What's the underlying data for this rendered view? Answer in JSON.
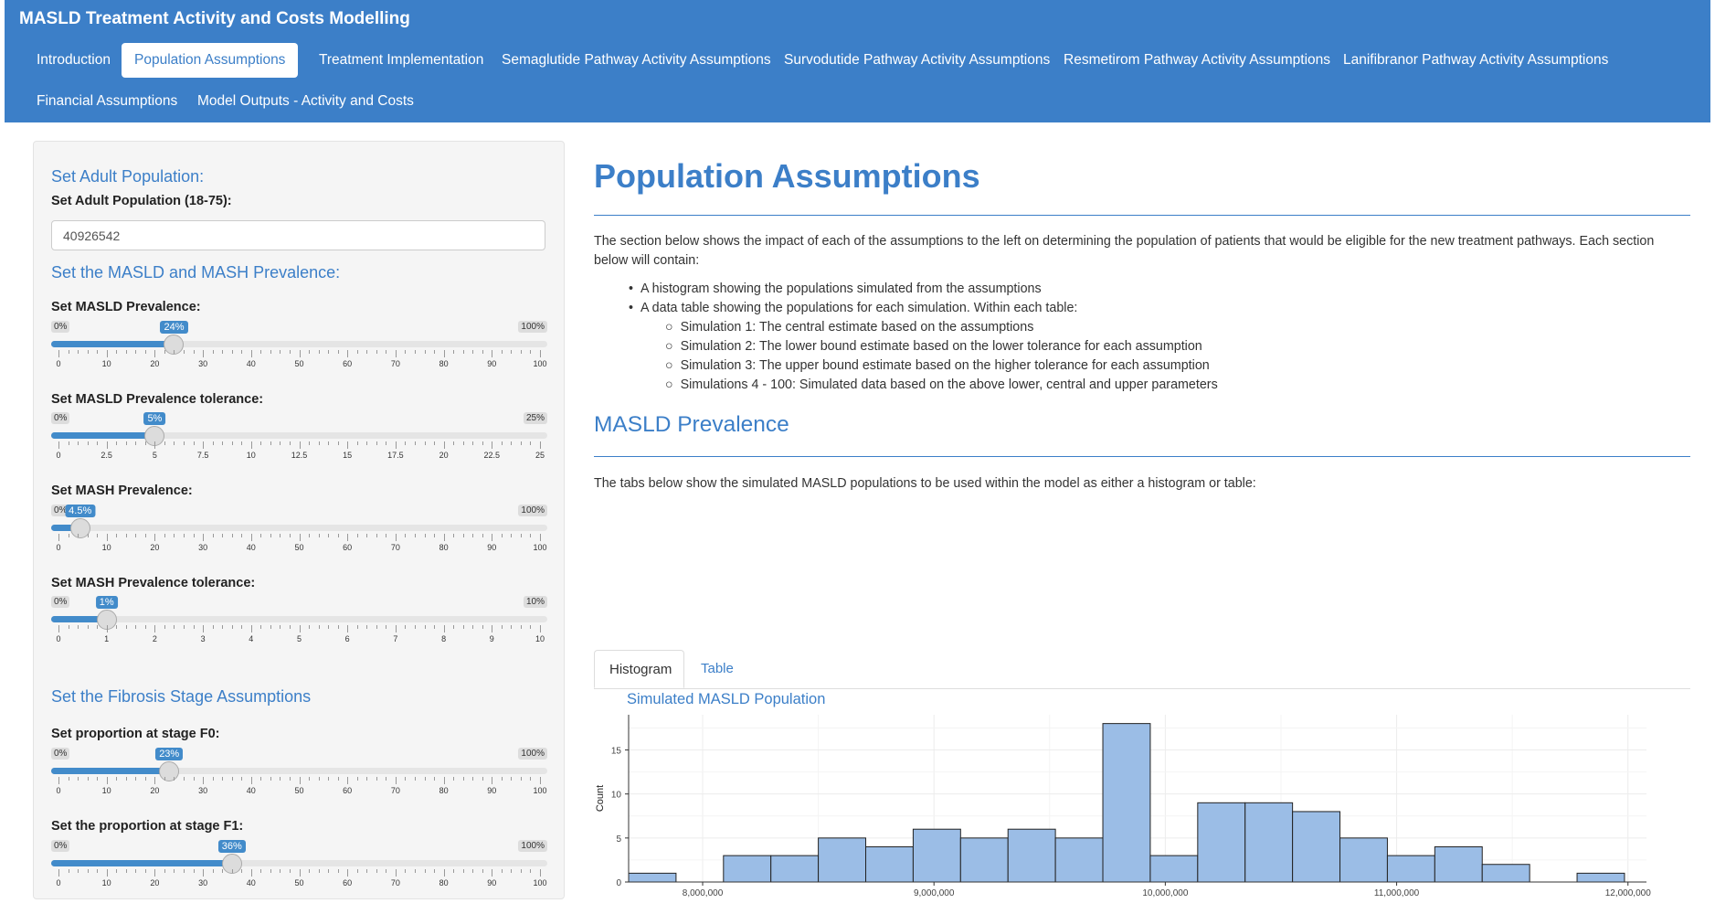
{
  "app_title": "MASLD Treatment Activity and Costs Modelling",
  "nav_tabs": [
    {
      "label": "Introduction"
    },
    {
      "label": "Population Assumptions"
    },
    {
      "label": "Treatment Implementation"
    },
    {
      "label": "Semaglutide Pathway Activity Assumptions"
    },
    {
      "label": "Survodutide Pathway Activity Assumptions"
    },
    {
      "label": "Resmetirom Pathway Activity Assumptions"
    },
    {
      "label": "Lanifibranor Pathway Activity Assumptions"
    },
    {
      "label": "Financial Assumptions"
    },
    {
      "label": "Model Outputs - Activity and Costs"
    }
  ],
  "active_tab": "Population Assumptions",
  "sidebar": {
    "adult_heading": "Set Adult Population:",
    "adult_label": "Set Adult Population (18-75):",
    "adult_value": "40926542",
    "prevalence_heading": "Set the MASLD and MASH Prevalence:",
    "fibrosis_heading": "Set the Fibrosis Stage Assumptions",
    "sliders": [
      {
        "label": "Set MASLD Prevalence:",
        "min": 0,
        "max": 100,
        "value": 24,
        "min_text": "0%",
        "max_text": "100%",
        "value_text": "24%",
        "ticks": [
          "0",
          "10",
          "20",
          "30",
          "40",
          "50",
          "60",
          "70",
          "80",
          "90",
          "100"
        ]
      },
      {
        "label": "Set MASLD Prevalence tolerance:",
        "min": 0,
        "max": 25,
        "value": 5,
        "min_text": "0%",
        "max_text": "25%",
        "value_text": "5%",
        "ticks": [
          "0",
          "2.5",
          "5",
          "7.5",
          "10",
          "12.5",
          "15",
          "17.5",
          "20",
          "22.5",
          "25"
        ]
      },
      {
        "label": "Set MASH Prevalence:",
        "min": 0,
        "max": 100,
        "value": 4.5,
        "min_text": "0%",
        "max_text": "100%",
        "value_text": "4.5%",
        "ticks": [
          "0",
          "10",
          "20",
          "30",
          "40",
          "50",
          "60",
          "70",
          "80",
          "90",
          "100"
        ]
      },
      {
        "label": "Set MASH Prevalence tolerance:",
        "min": 0,
        "max": 10,
        "value": 1,
        "min_text": "0%",
        "max_text": "10%",
        "value_text": "1%",
        "ticks": [
          "0",
          "1",
          "2",
          "3",
          "4",
          "5",
          "6",
          "7",
          "8",
          "9",
          "10"
        ]
      },
      {
        "label": "Set proportion at stage F0:",
        "min": 0,
        "max": 100,
        "value": 23,
        "min_text": "0%",
        "max_text": "100%",
        "value_text": "23%",
        "ticks": [
          "0",
          "10",
          "20",
          "30",
          "40",
          "50",
          "60",
          "70",
          "80",
          "90",
          "100"
        ]
      },
      {
        "label": "Set the proportion at stage F1:",
        "min": 0,
        "max": 100,
        "value": 36,
        "min_text": "0%",
        "max_text": "100%",
        "value_text": "36%",
        "ticks": [
          "0",
          "10",
          "20",
          "30",
          "40",
          "50",
          "60",
          "70",
          "80",
          "90",
          "100"
        ]
      }
    ]
  },
  "main": {
    "title": "Population Assumptions",
    "intro": "The section below shows the impact of each of the assumptions to the left on determining the population of patients that would be eligible for the new treatment pathways. Each section below will contain:",
    "bullets": [
      "A histogram showing the populations simulated from the assumptions",
      "A data table showing the populations for each simulation. Within each table:"
    ],
    "sub_bullets": [
      "Simulation 1: The central estimate based on the assumptions",
      "Simulation 2: The lower bound estimate based on the lower tolerance for each assumption",
      "Simulation 3: The upper bound estimate based on the higher tolerance for each assumption",
      "Simulations 4 - 100: Simulated data based on the above lower, central and upper parameters"
    ],
    "section_title": "MASLD Prevalence",
    "section_text": "The tabs below show the simulated MASLD populations to be used within the model as either a histogram or table:",
    "result_tabs": [
      "Histogram",
      "Table"
    ],
    "active_result_tab": "Histogram"
  },
  "chart_data": {
    "type": "bar",
    "title": "Simulated MASLD Population",
    "xlabel": "",
    "ylabel": "Count",
    "bin_width": 205000,
    "bin_start": 7680000,
    "counts": [
      1,
      0,
      3,
      3,
      5,
      4,
      6,
      5,
      6,
      5,
      18,
      3,
      9,
      9,
      8,
      5,
      3,
      4,
      2,
      0,
      1
    ],
    "xlim": [
      7680000,
      12080000
    ],
    "ylim": [
      0,
      19
    ],
    "x_ticks": [
      8000000,
      9000000,
      10000000,
      11000000,
      12000000
    ],
    "x_tick_labels": [
      "8,000,000",
      "9,000,000",
      "10,000,000",
      "11,000,000",
      "12,000,000"
    ],
    "y_ticks": [
      0,
      5,
      10,
      15
    ],
    "y_tick_labels": [
      "0",
      "5",
      "10",
      "15"
    ],
    "bar_color": "#9bbde6",
    "grid": true
  }
}
